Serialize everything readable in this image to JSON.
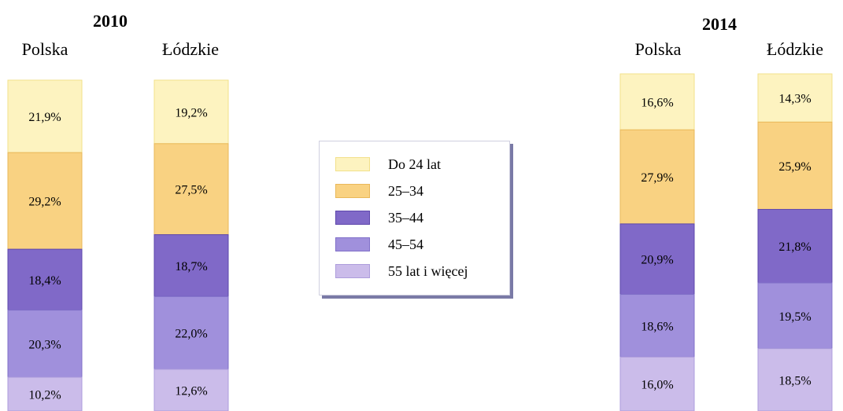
{
  "chart_data": [
    {
      "type": "bar",
      "stacked": true,
      "title": "2010",
      "categories": [
        "Polska",
        "Łódzkie"
      ],
      "series": [
        {
          "name": "Do 24 lat",
          "values": [
            21.9,
            19.2
          ],
          "labels": [
            "21,9%",
            "19,2%"
          ]
        },
        {
          "name": "25–34",
          "values": [
            29.2,
            27.5
          ],
          "labels": [
            "29,2%",
            "27,5%"
          ]
        },
        {
          "name": "35–44",
          "values": [
            18.4,
            18.7
          ],
          "labels": [
            "18,4%",
            "18,7%"
          ]
        },
        {
          "name": "45–54",
          "values": [
            20.3,
            22.0
          ],
          "labels": [
            "20,3%",
            "22,0%"
          ]
        },
        {
          "name": "55 lat i więcej",
          "values": [
            10.2,
            12.6
          ],
          "labels": [
            "10,2%",
            "12,6%"
          ]
        }
      ]
    },
    {
      "type": "bar",
      "stacked": true,
      "title": "2014",
      "categories": [
        "Polska",
        "Łódzkie"
      ],
      "series": [
        {
          "name": "Do 24 lat",
          "values": [
            16.6,
            14.3
          ],
          "labels": [
            "16,6%",
            "14,3%"
          ]
        },
        {
          "name": "25–34",
          "values": [
            27.9,
            25.9
          ],
          "labels": [
            "27,9%",
            "25,9%"
          ]
        },
        {
          "name": "35–44",
          "values": [
            20.9,
            21.8
          ],
          "labels": [
            "20,9%",
            "21,8%"
          ]
        },
        {
          "name": "45–54",
          "values": [
            18.6,
            19.5
          ],
          "labels": [
            "18,6%",
            "19,5%"
          ]
        },
        {
          "name": "55 lat i więcej",
          "values": [
            16.0,
            18.5
          ],
          "labels": [
            "16,0%",
            "18,5%"
          ]
        }
      ]
    }
  ],
  "legend": {
    "items": [
      {
        "label": "Do 24 lat",
        "color": "#fdf3c0",
        "border": "#f2e08a"
      },
      {
        "label": "25–34",
        "color": "#f9d282",
        "border": "#e9b85a"
      },
      {
        "label": "35–44",
        "color": "#8069c8",
        "border": "#5e48ac"
      },
      {
        "label": "45–54",
        "color": "#a090dc",
        "border": "#8070c8"
      },
      {
        "label": "55 lat i więcej",
        "color": "#cbbcea",
        "border": "#ad9ddc"
      }
    ]
  }
}
